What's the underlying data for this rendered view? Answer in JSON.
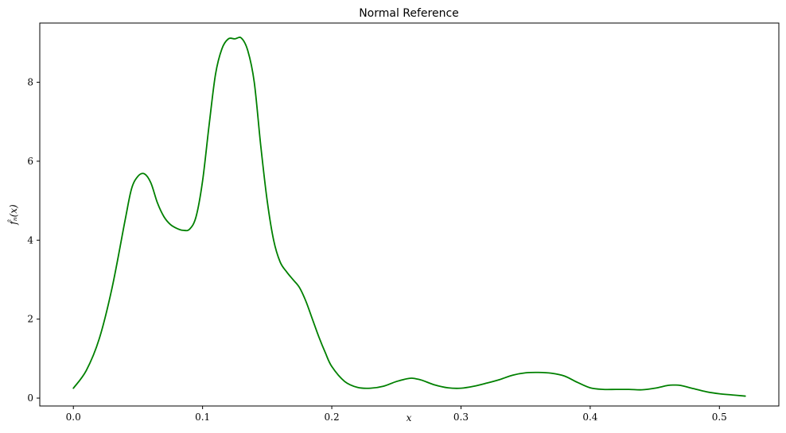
{
  "chart_data": {
    "type": "line",
    "title": "Normal Reference",
    "xlabel": "x",
    "ylabel": "f̂ₙ(x)",
    "xlim": [
      -0.026,
      0.546
    ],
    "ylim": [
      -0.2,
      9.5
    ],
    "xticks": [
      0.0,
      0.1,
      0.2,
      0.3,
      0.4,
      0.5
    ],
    "xtick_labels": [
      "0.0",
      "0.1",
      "0.2",
      "0.3",
      "0.4",
      "0.5"
    ],
    "yticks": [
      0,
      2,
      4,
      6,
      8
    ],
    "ytick_labels": [
      "0",
      "2",
      "4",
      "6",
      "8"
    ],
    "grid": false,
    "legend": false,
    "series": [
      {
        "color": "#008000",
        "x": [
          0.0,
          0.01,
          0.02,
          0.03,
          0.04,
          0.045,
          0.05,
          0.055,
          0.06,
          0.065,
          0.07,
          0.075,
          0.08,
          0.085,
          0.09,
          0.095,
          0.1,
          0.105,
          0.11,
          0.115,
          0.12,
          0.125,
          0.13,
          0.135,
          0.14,
          0.145,
          0.15,
          0.155,
          0.16,
          0.165,
          0.17,
          0.175,
          0.18,
          0.185,
          0.19,
          0.195,
          0.2,
          0.21,
          0.22,
          0.23,
          0.24,
          0.25,
          0.26,
          0.265,
          0.27,
          0.28,
          0.29,
          0.3,
          0.31,
          0.32,
          0.33,
          0.34,
          0.35,
          0.36,
          0.37,
          0.38,
          0.39,
          0.4,
          0.41,
          0.42,
          0.43,
          0.44,
          0.45,
          0.46,
          0.465,
          0.47,
          0.48,
          0.49,
          0.5,
          0.51,
          0.52
        ],
        "y": [
          0.25,
          0.7,
          1.5,
          2.8,
          4.5,
          5.3,
          5.62,
          5.68,
          5.45,
          4.95,
          4.6,
          4.4,
          4.3,
          4.25,
          4.28,
          4.6,
          5.5,
          6.9,
          8.2,
          8.85,
          9.1,
          9.1,
          9.12,
          8.8,
          8.0,
          6.4,
          5.0,
          4.0,
          3.45,
          3.2,
          3.0,
          2.8,
          2.45,
          2.0,
          1.55,
          1.15,
          0.8,
          0.42,
          0.27,
          0.25,
          0.3,
          0.42,
          0.5,
          0.49,
          0.45,
          0.33,
          0.26,
          0.25,
          0.3,
          0.38,
          0.47,
          0.58,
          0.64,
          0.65,
          0.63,
          0.56,
          0.4,
          0.26,
          0.22,
          0.22,
          0.22,
          0.21,
          0.25,
          0.32,
          0.33,
          0.32,
          0.24,
          0.16,
          0.11,
          0.08,
          0.05
        ]
      }
    ]
  }
}
